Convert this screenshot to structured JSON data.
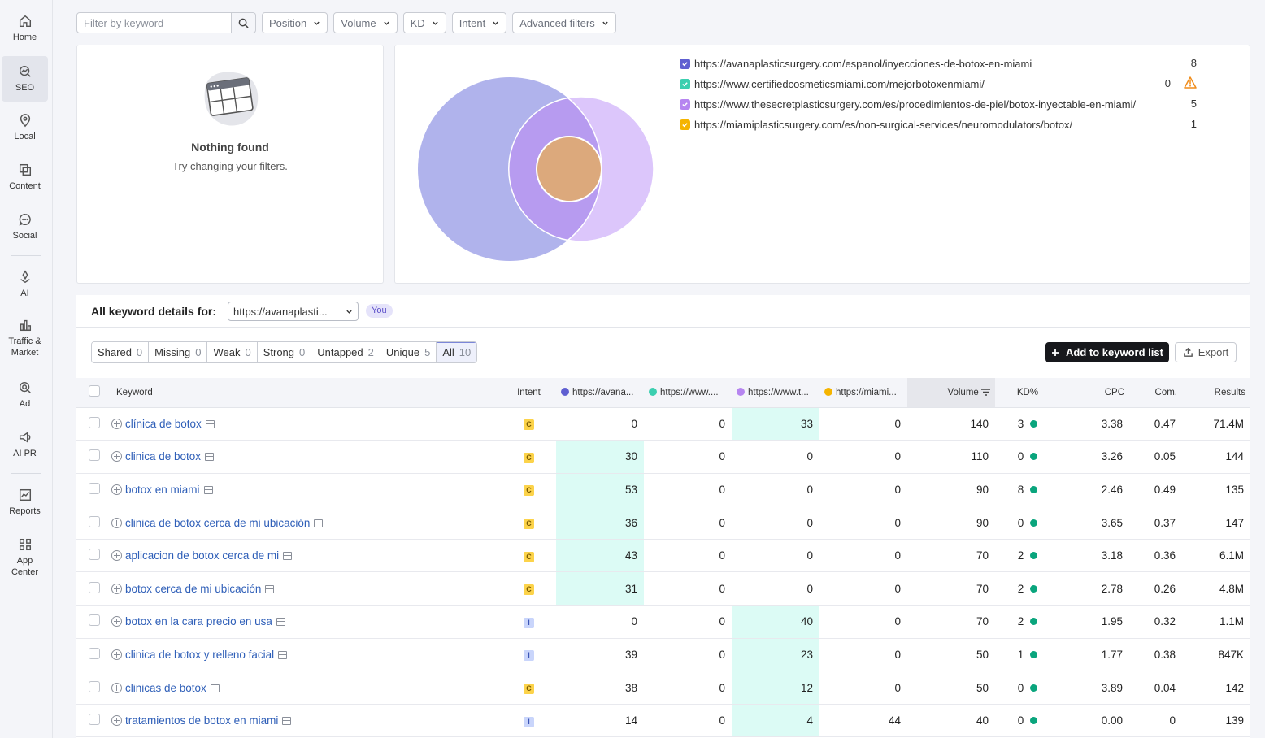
{
  "sidebar": {
    "items": [
      {
        "label": "Home",
        "icon": "home-icon"
      },
      {
        "label": "SEO",
        "icon": "seo-icon",
        "active": true
      },
      {
        "label": "Local",
        "icon": "location-pin-icon"
      },
      {
        "label": "Content",
        "icon": "content-icon"
      },
      {
        "label": "Social",
        "icon": "chat-bubble-icon"
      },
      {
        "label": "AI",
        "icon": "ai-icon"
      },
      {
        "label": "Traffic & Market",
        "icon": "bar-chart-icon"
      },
      {
        "label": "Ad",
        "icon": "ad-target-icon"
      },
      {
        "label": "AI PR",
        "icon": "megaphone-icon"
      },
      {
        "label": "Reports",
        "icon": "reports-icon"
      },
      {
        "label": "App Center",
        "icon": "app-grid-icon"
      }
    ]
  },
  "filters": {
    "search_placeholder": "Filter by keyword",
    "position": "Position",
    "volume": "Volume",
    "kd": "KD",
    "intent": "Intent",
    "advanced": "Advanced filters"
  },
  "empty_state": {
    "title": "Nothing found",
    "subtitle": "Try changing your filters."
  },
  "venn": {
    "domains": [
      {
        "url": "https://avanaplasticsurgery.com/espanol/inyecciones-de-botox-en-miami",
        "count": "8",
        "color": "#5f5fd1"
      },
      {
        "url": "https://www.certifiedcosmeticsmiami.com/mejorbotoxenmiami/",
        "count": "0",
        "color": "#3ccfb0",
        "warning": true
      },
      {
        "url": "https://www.thesecretplasticsurgery.com/es/procedimientos-de-piel/botox-inyectable-en-miami/",
        "count": "5",
        "color": "#b685f0"
      },
      {
        "url": "https://miamiplasticsurgery.com/es/non-surgical-services/neuromodulators/botox/",
        "count": "1",
        "color": "#f5b400"
      }
    ]
  },
  "details": {
    "label": "All keyword details for:",
    "selected_url": "https://avanaplasti...",
    "you_badge": "You"
  },
  "tabs": [
    {
      "label": "Shared",
      "count": "0"
    },
    {
      "label": "Missing",
      "count": "0"
    },
    {
      "label": "Weak",
      "count": "0"
    },
    {
      "label": "Strong",
      "count": "0"
    },
    {
      "label": "Untapped",
      "count": "2"
    },
    {
      "label": "Unique",
      "count": "5"
    },
    {
      "label": "All",
      "count": "10",
      "active": true
    }
  ],
  "actions": {
    "add_to_list": "Add to keyword list",
    "export": "Export"
  },
  "table": {
    "headers": {
      "keyword": "Keyword",
      "intent": "Intent",
      "d1": "https://avana...",
      "d2": "https://www....",
      "d3": "https://www.t...",
      "d4": "https://miami...",
      "volume": "Volume",
      "kd": "KD%",
      "cpc": "CPC",
      "com": "Com.",
      "results": "Results"
    },
    "rows": [
      {
        "keyword": "clínica de botox",
        "intent": "C",
        "d1": "0",
        "d2": "0",
        "d3": "33",
        "d4": "0",
        "hl": "d3",
        "volume": "140",
        "kd": "3",
        "cpc": "3.38",
        "com": "0.47",
        "results": "71.4M"
      },
      {
        "keyword": "clinica de botox",
        "intent": "C",
        "d1": "30",
        "d2": "0",
        "d3": "0",
        "d4": "0",
        "hl": "d1",
        "volume": "110",
        "kd": "0",
        "cpc": "3.26",
        "com": "0.05",
        "results": "144"
      },
      {
        "keyword": "botox en miami",
        "intent": "C",
        "d1": "53",
        "d2": "0",
        "d3": "0",
        "d4": "0",
        "hl": "d1",
        "volume": "90",
        "kd": "8",
        "cpc": "2.46",
        "com": "0.49",
        "results": "135"
      },
      {
        "keyword": "clinica de botox cerca de mi ubicación",
        "intent": "C",
        "d1": "36",
        "d2": "0",
        "d3": "0",
        "d4": "0",
        "hl": "d1",
        "volume": "90",
        "kd": "0",
        "cpc": "3.65",
        "com": "0.37",
        "results": "147"
      },
      {
        "keyword": "aplicacion de botox cerca de mi",
        "intent": "C",
        "d1": "43",
        "d2": "0",
        "d3": "0",
        "d4": "0",
        "hl": "d1",
        "volume": "70",
        "kd": "2",
        "cpc": "3.18",
        "com": "0.36",
        "results": "6.1M"
      },
      {
        "keyword": "botox cerca de mi ubicación",
        "intent": "C",
        "d1": "31",
        "d2": "0",
        "d3": "0",
        "d4": "0",
        "hl": "d1",
        "volume": "70",
        "kd": "2",
        "cpc": "2.78",
        "com": "0.26",
        "results": "4.8M"
      },
      {
        "keyword": "botox en la cara precio en usa",
        "intent": "I",
        "d1": "0",
        "d2": "0",
        "d3": "40",
        "d4": "0",
        "hl": "d3",
        "volume": "70",
        "kd": "2",
        "cpc": "1.95",
        "com": "0.32",
        "results": "1.1M"
      },
      {
        "keyword": "clinica de botox y relleno facial",
        "intent": "I",
        "d1": "39",
        "d2": "0",
        "d3": "23",
        "d4": "0",
        "hl": "d3",
        "volume": "50",
        "kd": "1",
        "cpc": "1.77",
        "com": "0.38",
        "results": "847K"
      },
      {
        "keyword": "clinicas de botox",
        "intent": "C",
        "d1": "38",
        "d2": "0",
        "d3": "12",
        "d4": "0",
        "hl": "d3",
        "volume": "50",
        "kd": "0",
        "cpc": "3.89",
        "com": "0.04",
        "results": "142"
      },
      {
        "keyword": "tratamientos de botox en miami",
        "intent": "I",
        "d1": "14",
        "d2": "0",
        "d3": "4",
        "d4": "44",
        "hl": "d3",
        "volume": "40",
        "kd": "0",
        "cpc": "0.00",
        "com": "0",
        "results": "139"
      }
    ]
  }
}
